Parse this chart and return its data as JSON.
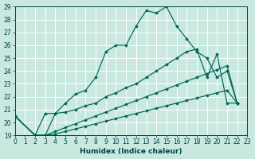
{
  "xlabel": "Humidex (Indice chaleur)",
  "bg_color": "#c8e8e0",
  "grid_color": "#b0d8d0",
  "line_color": "#006655",
  "xlim": [
    0,
    23
  ],
  "ylim": [
    19,
    29
  ],
  "yticks": [
    19,
    20,
    21,
    22,
    23,
    24,
    25,
    26,
    27,
    28,
    29
  ],
  "xticks": [
    0,
    1,
    2,
    3,
    4,
    5,
    6,
    7,
    8,
    9,
    10,
    11,
    12,
    13,
    14,
    15,
    16,
    17,
    18,
    19,
    20,
    21,
    22,
    23
  ],
  "curves": [
    {
      "x": [
        0,
        2,
        3,
        4,
        5,
        6,
        7,
        8,
        9,
        10,
        11,
        12,
        13,
        14,
        15,
        16,
        17,
        18,
        19,
        20,
        21,
        22
      ],
      "y": [
        20.5,
        19.0,
        20.7,
        20.7,
        21.5,
        22.2,
        22.5,
        23.5,
        25.5,
        26.0,
        26.0,
        27.5,
        28.7,
        28.5,
        29.0,
        27.5,
        26.5,
        25.5,
        25.0,
        23.5,
        24.0,
        21.5
      ]
    },
    {
      "x": [
        0,
        2,
        3,
        4,
        5,
        6,
        7,
        8,
        9,
        10,
        11,
        12,
        13,
        14,
        15,
        16,
        17,
        18,
        19,
        20,
        21,
        22
      ],
      "y": [
        20.5,
        19.0,
        19.0,
        20.7,
        20.8,
        21.0,
        21.3,
        21.5,
        22.0,
        22.3,
        22.7,
        23.0,
        23.5,
        24.0,
        24.5,
        25.0,
        25.5,
        25.7,
        23.5,
        25.3,
        21.5,
        21.5
      ]
    },
    {
      "x": [
        0,
        2,
        3,
        4,
        5,
        6,
        7,
        8,
        9,
        10,
        11,
        12,
        13,
        14,
        15,
        16,
        17,
        18,
        19,
        20,
        21,
        22
      ],
      "y": [
        20.5,
        19.0,
        19.0,
        19.3,
        19.6,
        19.9,
        20.2,
        20.5,
        20.8,
        21.1,
        21.4,
        21.7,
        22.0,
        22.3,
        22.6,
        22.9,
        23.2,
        23.5,
        23.8,
        24.1,
        24.4,
        21.5
      ]
    },
    {
      "x": [
        0,
        2,
        3,
        4,
        5,
        6,
        7,
        8,
        9,
        10,
        11,
        12,
        13,
        14,
        15,
        16,
        17,
        18,
        19,
        20,
        21,
        22
      ],
      "y": [
        20.5,
        19.0,
        19.0,
        19.1,
        19.3,
        19.5,
        19.7,
        19.9,
        20.1,
        20.3,
        20.5,
        20.7,
        20.9,
        21.1,
        21.3,
        21.5,
        21.7,
        21.9,
        22.1,
        22.3,
        22.5,
        21.5
      ]
    }
  ]
}
